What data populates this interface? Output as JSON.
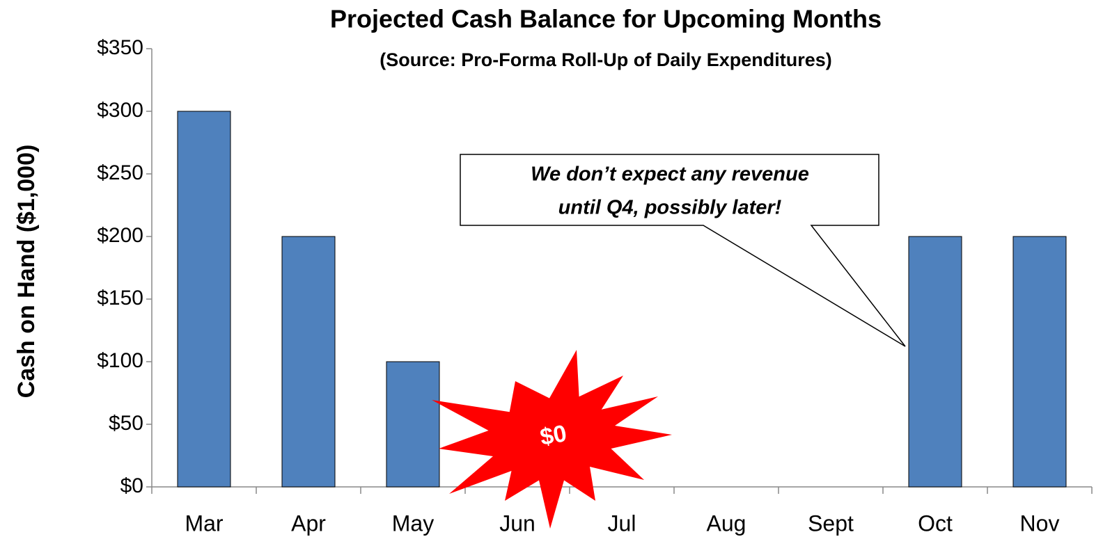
{
  "chart_data": {
    "type": "bar",
    "title": "Projected Cash Balance for Upcoming Months",
    "subtitle": "(Source:  Pro-Forma Roll-Up of Daily Expenditures)",
    "y_label": "Cash on Hand ($1,000)",
    "categories": [
      "Mar",
      "Apr",
      "May",
      "Jun",
      "Jul",
      "Aug",
      "Sept",
      "Oct",
      "Nov"
    ],
    "values": [
      300,
      200,
      100,
      0,
      0,
      0,
      0,
      200,
      200
    ],
    "color": "#4f81bd",
    "ylim": [
      0,
      350
    ],
    "yticks": [
      {
        "value": 0,
        "label": "$0"
      },
      {
        "value": 50,
        "label": "$50"
      },
      {
        "value": 100,
        "label": "$100"
      },
      {
        "value": 150,
        "label": "$150"
      },
      {
        "value": 200,
        "label": "$200"
      },
      {
        "value": 250,
        "label": "$250"
      },
      {
        "value": 300,
        "label": "$300"
      },
      {
        "value": 350,
        "label": "$350"
      }
    ],
    "grid": false,
    "callout": [
      "We don’t expect any revenue",
      "until Q4, possibly later!"
    ],
    "burst": "$0"
  }
}
